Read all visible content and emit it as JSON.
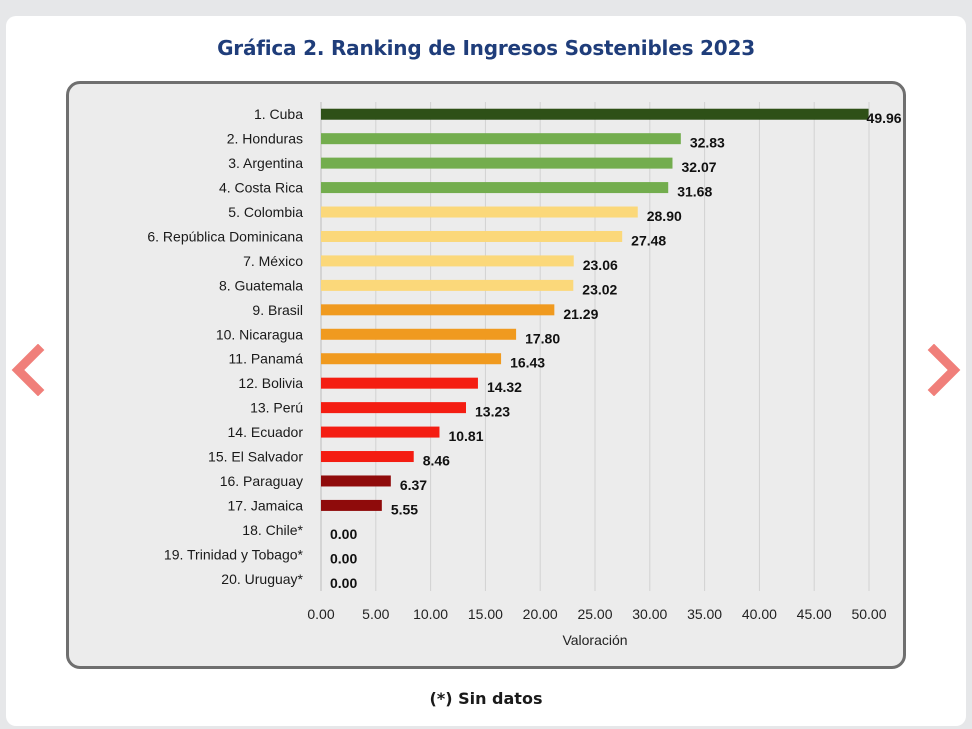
{
  "header": {
    "title": "Gráfica 2. Ranking de Ingresos Sostenibles 2023"
  },
  "footnote": "(*) Sin datos",
  "nav": {
    "prev_icon": "chevron-left-icon",
    "next_icon": "chevron-right-icon",
    "arrow_color": "#f07f7a"
  },
  "chart_data": {
    "type": "bar",
    "orientation": "horizontal",
    "title": "",
    "xlabel": "Valoración",
    "ylabel": "",
    "xlim": [
      0,
      50
    ],
    "xticks": [
      "0.00",
      "5.00",
      "10.00",
      "15.00",
      "20.00",
      "25.00",
      "30.00",
      "35.00",
      "40.00",
      "45.00",
      "50.00"
    ],
    "grid": true,
    "legend": "none",
    "categories": [
      "1. Cuba",
      "2. Honduras",
      "3. Argentina",
      "4. Costa Rica",
      "5. Colombia",
      "6. República Dominicana",
      "7. México",
      "8. Guatemala",
      "9. Brasil",
      "10. Nicaragua",
      "11. Panamá",
      "12. Bolivia",
      "13. Perú",
      "14. Ecuador",
      "15. El Salvador",
      "16. Paraguay",
      "17. Jamaica",
      "18. Chile*",
      "19.  Trinidad y Tobago*",
      "20. Uruguay*"
    ],
    "values": [
      49.96,
      32.83,
      32.07,
      31.68,
      28.9,
      27.48,
      23.06,
      23.02,
      21.29,
      17.8,
      16.43,
      14.32,
      13.23,
      10.81,
      8.46,
      6.37,
      5.55,
      0.0,
      0.0,
      0.0
    ],
    "value_labels": [
      "49.96",
      "32.83",
      "32.07",
      "31.68",
      "28.90",
      "27.48",
      "23.06",
      "23.02",
      "21.29",
      "17.80",
      "16.43",
      "14.32",
      "13.23",
      "10.81",
      "8.46",
      "6.37",
      "5.55",
      "0.00",
      "0.00",
      "0.00"
    ],
    "bar_colors": [
      "#2e5017",
      "#73ad4e",
      "#73ad4e",
      "#73ad4e",
      "#fbd87a",
      "#fbd87a",
      "#fbd87a",
      "#fbd87a",
      "#f09a1f",
      "#f09a1f",
      "#f09a1f",
      "#f41d12",
      "#f41d12",
      "#f41d12",
      "#f41d12",
      "#8f0b0b",
      "#8f0b0b",
      "#8f0b0b",
      "#8f0b0b",
      "#8f0b0b"
    ]
  }
}
